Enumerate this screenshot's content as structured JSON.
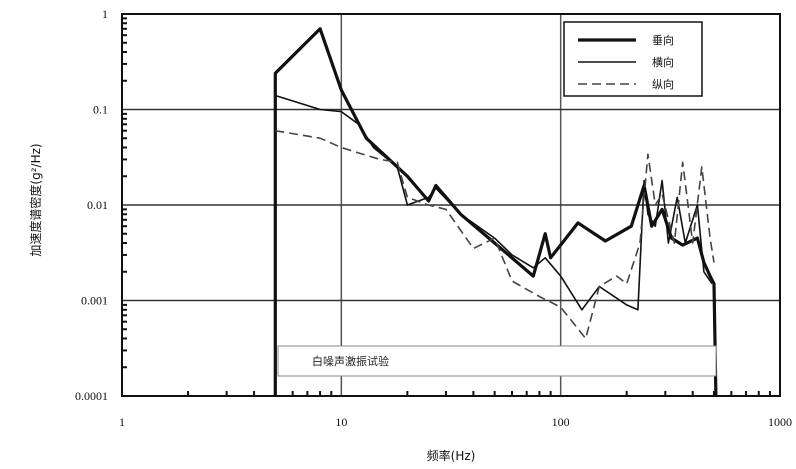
{
  "chart_data": {
    "type": "line",
    "xlabel": "频率(Hz)",
    "ylabel": "加速度谱密度(g²/Hz)",
    "xscale": "log",
    "yscale": "log",
    "xlim": [
      1,
      1000
    ],
    "ylim": [
      0.0001,
      1
    ],
    "xticks": [
      "1",
      "10",
      "100",
      "1000"
    ],
    "yticks": [
      "0.0001",
      "0.001",
      "0.01",
      "0.1",
      "1"
    ],
    "grid": true,
    "legend_position": "top-right",
    "annotation": "白噪声激振试验",
    "series": [
      {
        "name": "垂向",
        "style": "thick-solid",
        "color": "#111111",
        "points": [
          [
            5,
            0.0001
          ],
          [
            5,
            0.24
          ],
          [
            8,
            0.7
          ],
          [
            10,
            0.16
          ],
          [
            13,
            0.05
          ],
          [
            20,
            0.02
          ],
          [
            25,
            0.011
          ],
          [
            27,
            0.016
          ],
          [
            35,
            0.008
          ],
          [
            50,
            0.004
          ],
          [
            75,
            0.0018
          ],
          [
            85,
            0.005
          ],
          [
            90,
            0.0028
          ],
          [
            120,
            0.0065
          ],
          [
            160,
            0.0042
          ],
          [
            210,
            0.006
          ],
          [
            240,
            0.016
          ],
          [
            260,
            0.006
          ],
          [
            290,
            0.009
          ],
          [
            320,
            0.0045
          ],
          [
            360,
            0.0038
          ],
          [
            420,
            0.0045
          ],
          [
            450,
            0.0025
          ],
          [
            480,
            0.0018
          ],
          [
            500,
            0.0015
          ],
          [
            510,
            0.0001
          ]
        ]
      },
      {
        "name": "横向",
        "style": "thin-solid",
        "color": "#111111",
        "points": [
          [
            5,
            0.14
          ],
          [
            8,
            0.1
          ],
          [
            10,
            0.095
          ],
          [
            12,
            0.07
          ],
          [
            14,
            0.04
          ],
          [
            18,
            0.025
          ],
          [
            20,
            0.01
          ],
          [
            25,
            0.012
          ],
          [
            27,
            0.015
          ],
          [
            35,
            0.008
          ],
          [
            50,
            0.0045
          ],
          [
            60,
            0.003
          ],
          [
            75,
            0.0022
          ],
          [
            85,
            0.0028
          ],
          [
            100,
            0.0018
          ],
          [
            125,
            0.0008
          ],
          [
            150,
            0.0014
          ],
          [
            200,
            0.0009
          ],
          [
            225,
            0.0008
          ],
          [
            240,
            0.018
          ],
          [
            250,
            0.008
          ],
          [
            270,
            0.006
          ],
          [
            290,
            0.018
          ],
          [
            310,
            0.004
          ],
          [
            340,
            0.012
          ],
          [
            370,
            0.004
          ],
          [
            420,
            0.01
          ],
          [
            450,
            0.002
          ],
          [
            490,
            0.0015
          ]
        ]
      },
      {
        "name": "纵向",
        "style": "dashed",
        "color": "#444444",
        "points": [
          [
            5,
            0.06
          ],
          [
            8,
            0.05
          ],
          [
            10,
            0.04
          ],
          [
            12,
            0.035
          ],
          [
            15,
            0.03
          ],
          [
            18,
            0.028
          ],
          [
            20,
            0.012
          ],
          [
            25,
            0.01
          ],
          [
            30,
            0.009
          ],
          [
            40,
            0.0035
          ],
          [
            50,
            0.0045
          ],
          [
            60,
            0.0016
          ],
          [
            80,
            0.0011
          ],
          [
            100,
            0.00085
          ],
          [
            130,
            0.0004
          ],
          [
            150,
            0.0014
          ],
          [
            180,
            0.0018
          ],
          [
            200,
            0.0015
          ],
          [
            230,
            0.004
          ],
          [
            250,
            0.034
          ],
          [
            270,
            0.01
          ],
          [
            290,
            0.013
          ],
          [
            330,
            0.004
          ],
          [
            360,
            0.028
          ],
          [
            400,
            0.004
          ],
          [
            440,
            0.025
          ],
          [
            480,
            0.0045
          ],
          [
            500,
            0.0025
          ]
        ]
      }
    ]
  }
}
